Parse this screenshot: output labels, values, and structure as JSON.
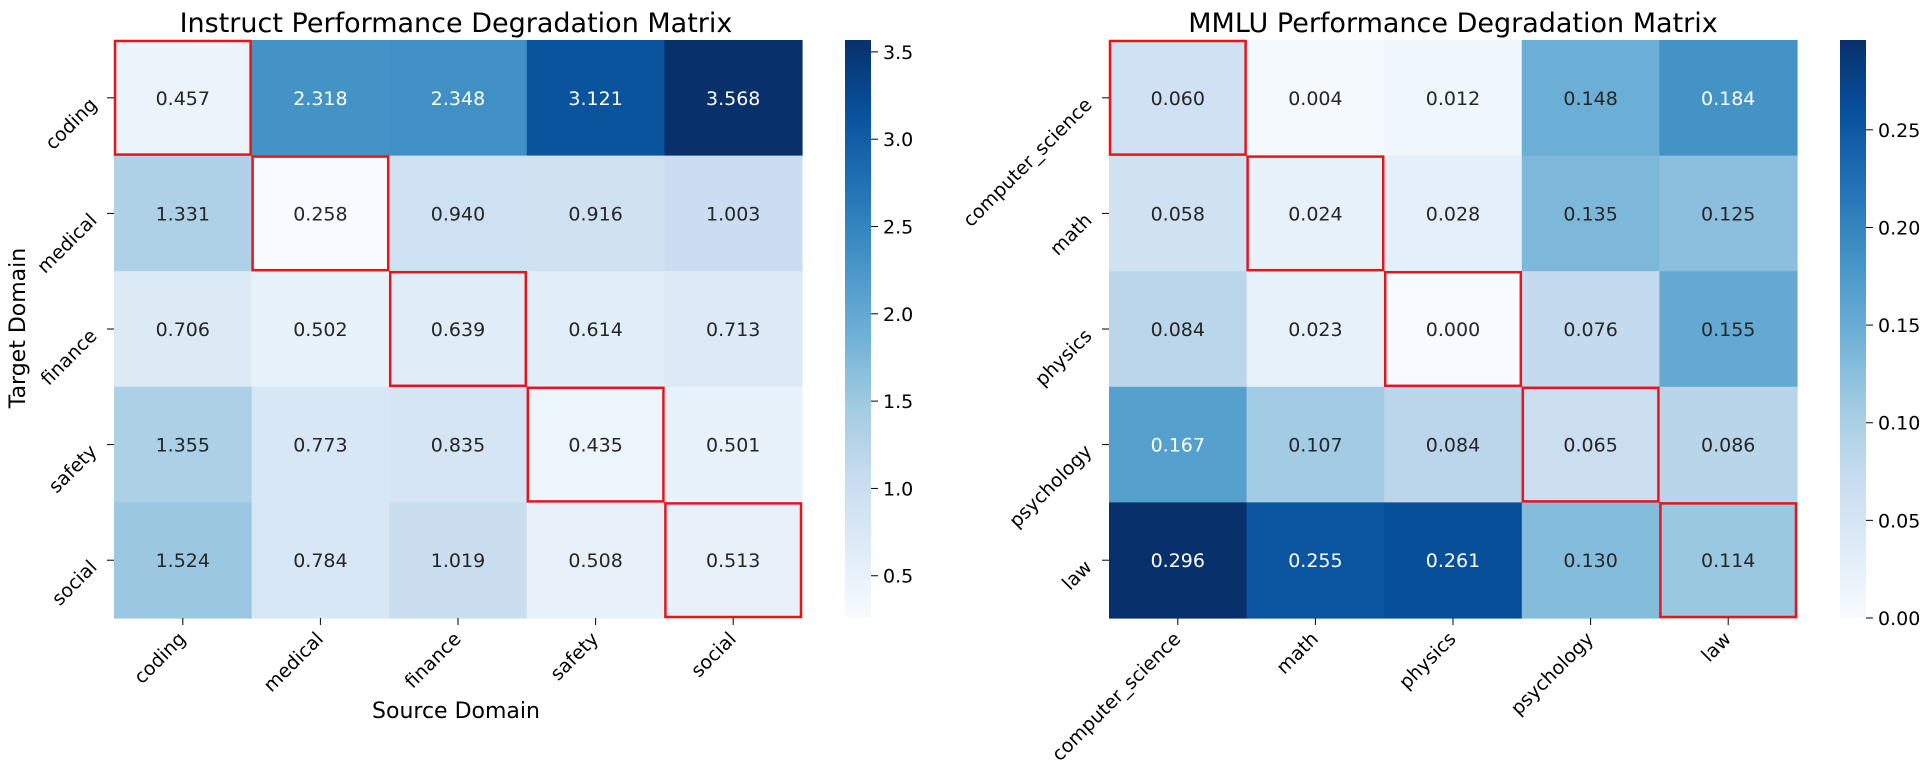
{
  "chart_data": [
    {
      "type": "heatmap",
      "title": "Instruct Performance Degradation Matrix",
      "xlabel": "Source Domain",
      "ylabel": "Target Domain",
      "x_categories": [
        "coding",
        "medical",
        "finance",
        "safety",
        "social"
      ],
      "y_categories": [
        "coding",
        "medical",
        "finance",
        "safety",
        "social"
      ],
      "values": [
        [
          0.457,
          2.318,
          2.348,
          3.121,
          3.568
        ],
        [
          1.331,
          0.258,
          0.94,
          0.916,
          1.003
        ],
        [
          0.706,
          0.502,
          0.639,
          0.614,
          0.713
        ],
        [
          1.355,
          0.773,
          0.835,
          0.435,
          0.501
        ],
        [
          1.524,
          0.784,
          1.019,
          0.508,
          0.513
        ]
      ],
      "colormap": "Blues",
      "colorbar_range": [
        0.258,
        3.568
      ],
      "colorbar_ticks": [
        "0.5",
        "1.0",
        "1.5",
        "2.0",
        "2.5",
        "3.0",
        "3.5"
      ],
      "highlight_diagonal_color": "#e8141c"
    },
    {
      "type": "heatmap",
      "title": "MMLU Performance Degradation Matrix",
      "xlabel": "",
      "ylabel": "",
      "x_categories": [
        "computer_science",
        "math",
        "physics",
        "psychology",
        "law"
      ],
      "y_categories": [
        "computer_science",
        "math",
        "physics",
        "psychology",
        "law"
      ],
      "values": [
        [
          0.06,
          0.004,
          0.012,
          0.148,
          0.184
        ],
        [
          0.058,
          0.024,
          0.028,
          0.135,
          0.125
        ],
        [
          0.084,
          0.023,
          0.0,
          0.076,
          0.155
        ],
        [
          0.167,
          0.107,
          0.084,
          0.065,
          0.086
        ],
        [
          0.296,
          0.255,
          0.261,
          0.13,
          0.114
        ]
      ],
      "colormap": "Blues",
      "colorbar_range": [
        0.0,
        0.296
      ],
      "colorbar_ticks": [
        "0.00",
        "0.05",
        "0.10",
        "0.15",
        "0.20",
        "0.25"
      ],
      "highlight_diagonal_color": "#e8141c"
    }
  ]
}
